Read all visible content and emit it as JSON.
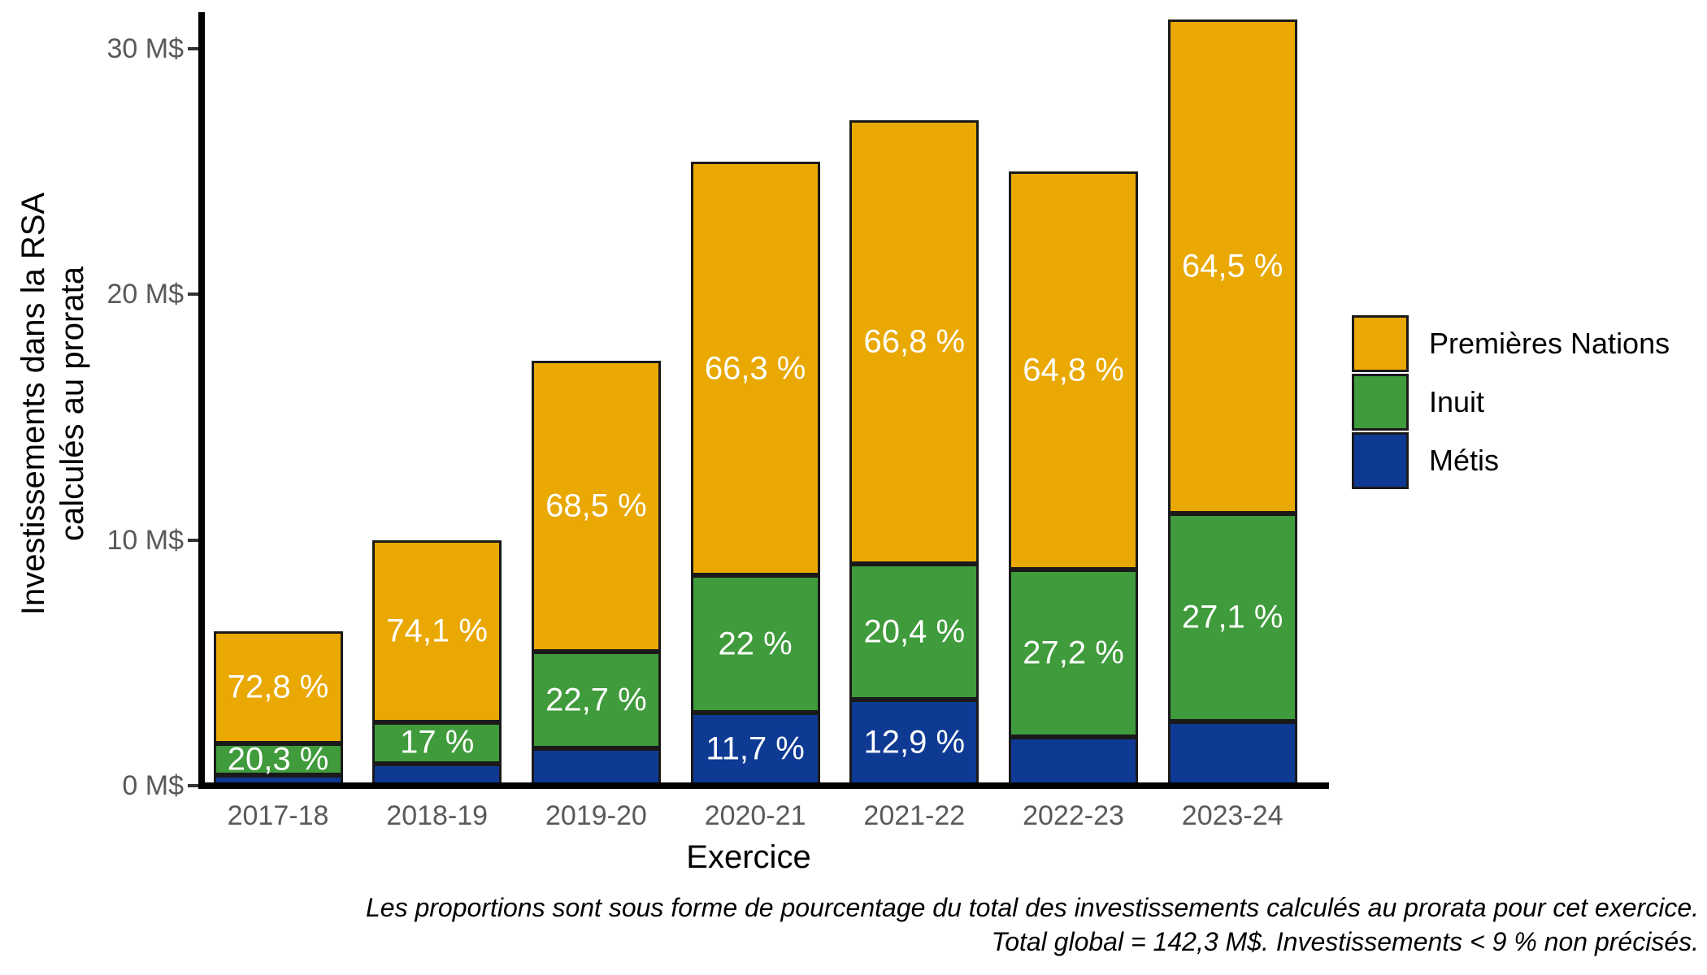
{
  "chart_data": {
    "type": "bar",
    "stacked": true,
    "xlabel": "Exercice",
    "ylabel_lines": [
      "Investissements dans la RSA",
      "calculés au prorata"
    ],
    "categories": [
      "2017-18",
      "2018-19",
      "2019-20",
      "2020-21",
      "2021-22",
      "2022-23",
      "2023-24"
    ],
    "y_ticks": [
      {
        "value": 0,
        "label": "0 M$"
      },
      {
        "value": 10,
        "label": "10 M$"
      },
      {
        "value": 20,
        "label": "20 M$"
      },
      {
        "value": 30,
        "label": "30 M$"
      }
    ],
    "ylim": [
      0,
      31.5
    ],
    "unit": "M$",
    "totals": [
      6.3,
      10.0,
      17.3,
      25.4,
      27.1,
      25.0,
      31.2
    ],
    "series": [
      {
        "name": "Premières Nations",
        "color": "#E9A802",
        "values": [
          4.586,
          7.41,
          11.851,
          16.84,
          18.07,
          16.2,
          20.124
        ],
        "pct_labels": [
          "72,8 %",
          "74,1 %",
          "68,5 %",
          "66,3 %",
          "66,8 %",
          "64,8 %",
          "64,5 %"
        ]
      },
      {
        "name": "Inuit",
        "color": "#3F9B3B",
        "values": [
          1.279,
          1.7,
          3.927,
          5.588,
          5.53,
          6.8,
          8.455
        ],
        "pct_labels": [
          "20,3 %",
          "17 %",
          "22,7 %",
          "22 %",
          "20,4 %",
          "27,2 %",
          "27,1 %"
        ]
      },
      {
        "name": "Métis",
        "color": "#0E3A94",
        "values": [
          0.435,
          0.89,
          1.522,
          2.972,
          3.5,
          2.0,
          2.621
        ],
        "pct_labels": [
          null,
          null,
          null,
          "11,7 %",
          "12,9 %",
          null,
          null
        ]
      }
    ],
    "legend_position": "right",
    "caption_lines": [
      "Les proportions sont sous forme de pourcentage du total des investissements calculés au prorata pour cet exercice.",
      "Total global = 142,3 M$. Investissements < 9 % non précisés."
    ]
  }
}
